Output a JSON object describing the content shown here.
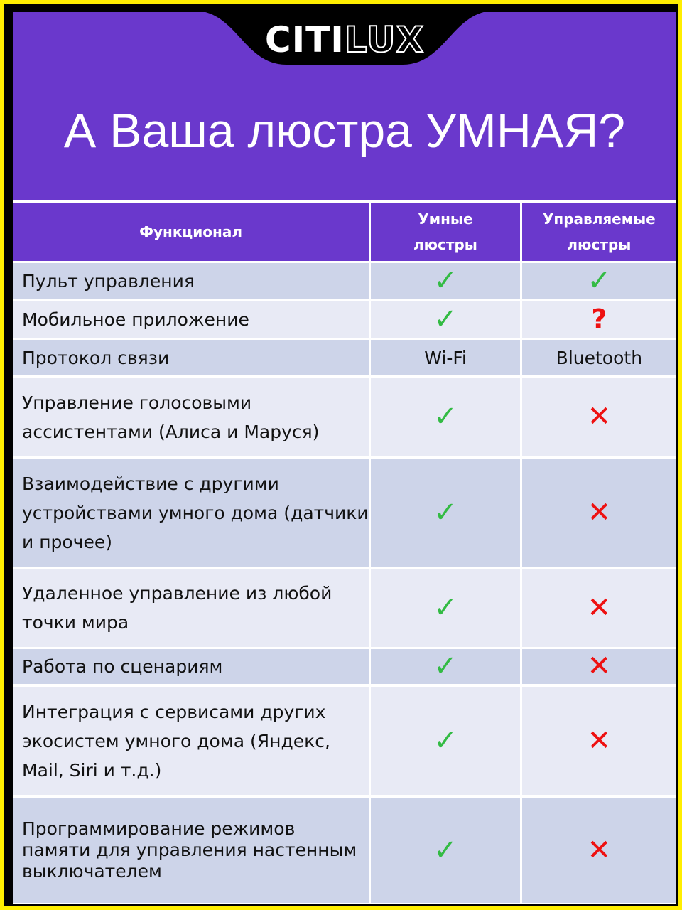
{
  "brand": {
    "logo_text_solid": "CITI",
    "logo_text_outline": "LUX"
  },
  "title": "А Ваша люстра УМНАЯ?",
  "colors": {
    "header": "#6a38cc",
    "border": "#ffee00",
    "check": "#33bb44",
    "cross": "#ee1111"
  },
  "table": {
    "headers": [
      "Функционал",
      "Умные люстры",
      "Управляемые люстры"
    ],
    "rows": [
      {
        "feature": "Пульт управления",
        "smart": "✓",
        "controlled": "✓",
        "smart_icon": "check",
        "controlled_icon": "check"
      },
      {
        "feature": "Мобильное приложение",
        "smart": "✓",
        "controlled": "?",
        "smart_icon": "check",
        "controlled_icon": "question"
      },
      {
        "feature": "Протокол связи",
        "smart": "Wi-Fi",
        "controlled": "Bluetooth"
      },
      {
        "feature": "Управление голосовыми ассистентами (Алиса и Маруся)",
        "smart": "✓",
        "controlled": "✕",
        "smart_icon": "check",
        "controlled_icon": "cross"
      },
      {
        "feature": "Взаимодействие с другими устройствами умного дома (датчики и прочее)",
        "smart": "✓",
        "controlled": "✕",
        "smart_icon": "check",
        "controlled_icon": "cross"
      },
      {
        "feature": "Удаленное управление из любой точки мира",
        "smart": "✓",
        "controlled": "✕",
        "smart_icon": "check",
        "controlled_icon": "cross"
      },
      {
        "feature": "Работа по сценариям",
        "smart": "✓",
        "controlled": "✕",
        "smart_icon": "check",
        "controlled_icon": "cross"
      },
      {
        "feature": "Интеграция с сервисами других экосистем умного дома (Яндекс, Mail, Siri и т.д.)",
        "smart": "✓",
        "controlled": "✕",
        "smart_icon": "check",
        "controlled_icon": "cross"
      },
      {
        "feature": "Программирование режимов памяти для управления настенным выключателем",
        "smart": "✓",
        "controlled": "✕",
        "smart_icon": "check",
        "controlled_icon": "cross"
      }
    ]
  }
}
